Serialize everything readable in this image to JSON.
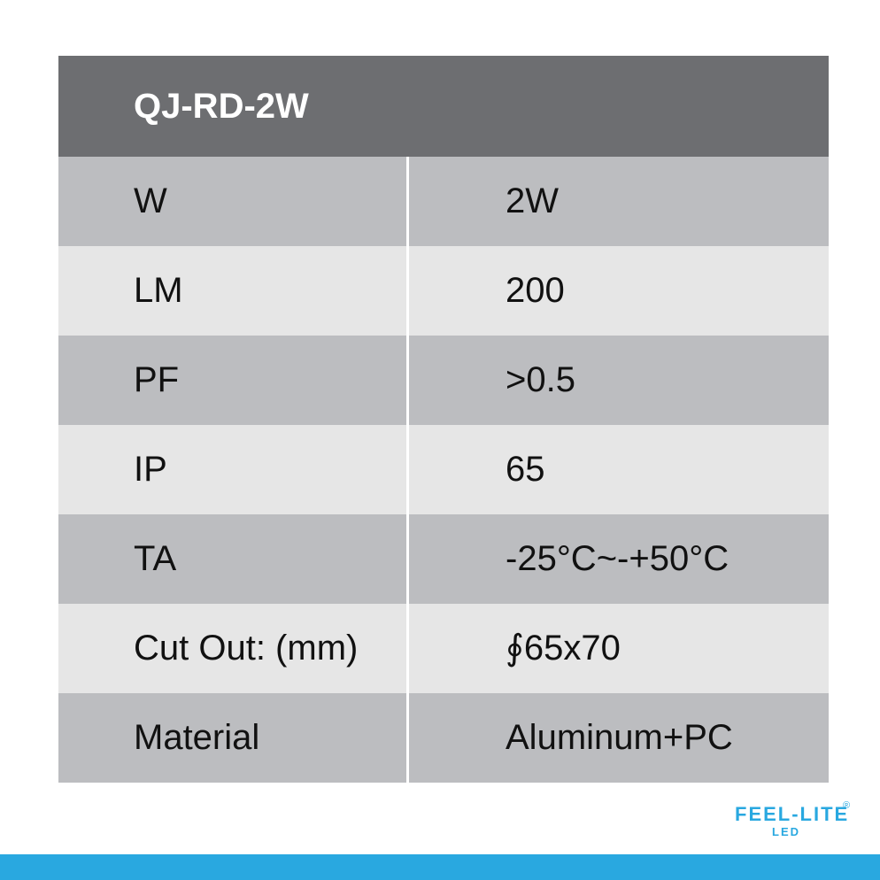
{
  "header": {
    "title": "QJ-RD-2W"
  },
  "table": {
    "rows": [
      [
        "W",
        "2W"
      ],
      [
        "LM",
        "200"
      ],
      [
        "PF",
        ">0.5"
      ],
      [
        "IP",
        "65"
      ],
      [
        "TA",
        "-25°C~-+50°C"
      ],
      [
        "Cut Out: (mm)",
        "∮65x70"
      ],
      [
        "Material",
        "Aluminum+PC"
      ]
    ]
  },
  "logo": {
    "brand": "FEEL-LITE",
    "sub": "LED",
    "mark": "®"
  }
}
